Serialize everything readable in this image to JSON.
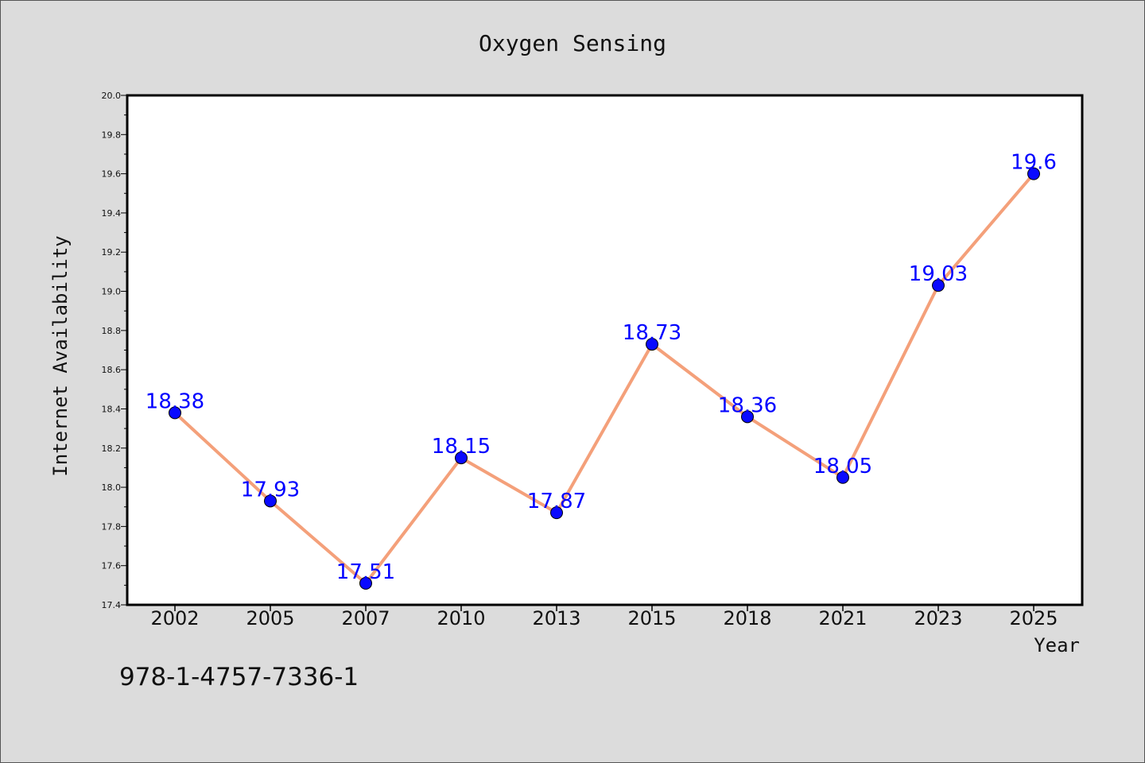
{
  "chart_data": {
    "type": "line",
    "title": "Oxygen Sensing",
    "xlabel": "Year",
    "ylabel": "Internet Availability",
    "categories": [
      "2002",
      "2005",
      "2007",
      "2010",
      "2013",
      "2015",
      "2018",
      "2021",
      "2023",
      "2025"
    ],
    "series": [
      {
        "values": [
          18.38,
          17.93,
          17.51,
          18.15,
          17.87,
          18.73,
          18.36,
          18.05,
          19.03,
          19.6
        ],
        "labels": [
          "18.38",
          "17.93",
          "17.51",
          "18.15",
          "17.87",
          "18.73",
          "18.36",
          "18.05",
          "19.03",
          "19.6"
        ]
      }
    ],
    "ylim": [
      17.4,
      20.0
    ],
    "yticks": [
      "17.4",
      "17.6",
      "17.8",
      "18.0",
      "18.2",
      "18.4",
      "18.6",
      "18.8",
      "19.0",
      "19.2",
      "19.4",
      "19.6",
      "19.8",
      "20.0"
    ],
    "grid": false,
    "line_color": "#f4a07a",
    "marker_color": "#0a0aff",
    "label_color": "#0000ff"
  },
  "footer": {
    "code": "978-1-4757-7336-1"
  }
}
